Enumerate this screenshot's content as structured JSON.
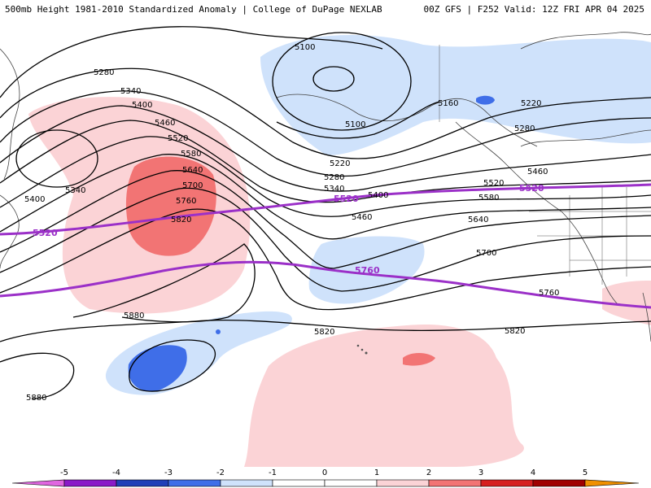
{
  "header": {
    "title": "500mb Height 1981-2010 Standardized Anomaly | College of DuPage NEXLAB",
    "run_info": "00Z GFS | F252 Valid: 12Z FRI APR 04 2025"
  },
  "colors": {
    "anom_neg5": "#e066e0",
    "anom_neg4": "#8a1ac8",
    "anom_neg3": "#1f3fb8",
    "anom_neg2": "#3f6ee8",
    "anom_neg1": "#cfe2fb",
    "anom_pos1": "#fbd3d6",
    "anom_pos2": "#f27474",
    "anom_pos3": "#d62020",
    "anom_pos4": "#a00000",
    "anom_pos5": "#f09000",
    "highlight_contour": "#9b30c8",
    "height_contour": "#000000"
  },
  "contour_labels": [
    "5100",
    "5100",
    "5160",
    "5220",
    "5220",
    "5280",
    "5280",
    "5280",
    "5340",
    "5340",
    "5340",
    "5400",
    "5400",
    "5400",
    "5460",
    "5460",
    "5460",
    "5520",
    "5520",
    "5580",
    "5580",
    "5640",
    "5640",
    "5700",
    "5700",
    "5760",
    "5760",
    "5820",
    "5820",
    "5820",
    "5880",
    "5880"
  ],
  "highlight_labels": [
    "5520",
    "5520",
    "5520",
    "5760"
  ],
  "colorbar": {
    "ticks": [
      "-5",
      "-4",
      "-3",
      "-2",
      "-1",
      "0",
      "1",
      "2",
      "3",
      "4",
      "5"
    ]
  }
}
